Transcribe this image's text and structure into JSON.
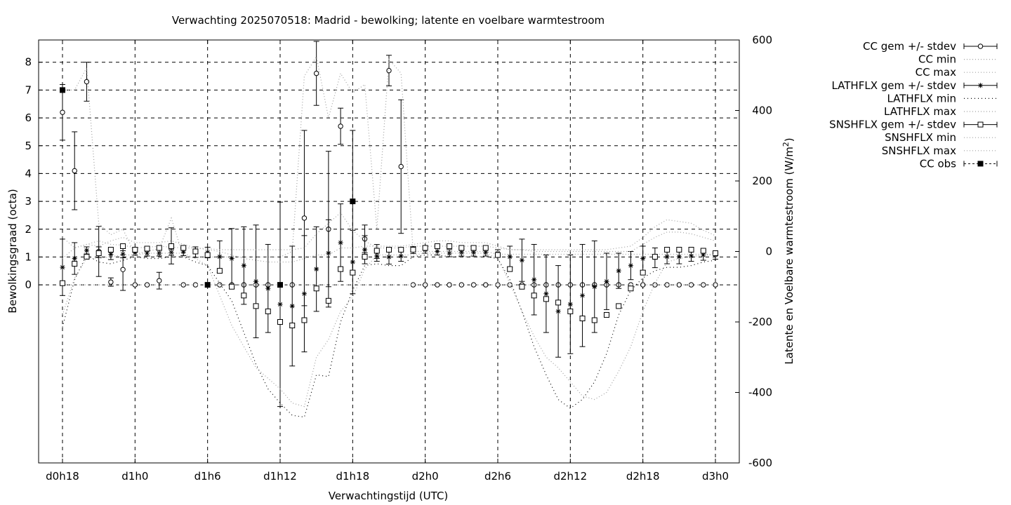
{
  "chart_data": {
    "type": "line",
    "title": "Verwachting 2025070518: Madrid - bewolking; latente en voelbare warmtestroom",
    "xlabel": "Verwachtingstijd (UTC)",
    "ylabel": "Bewolkingsgraad (octa)",
    "y2label_main": "Latente en Voelbare warmtestroom (W/m",
    "y2label_sup": "2",
    "y2label_end": ")",
    "xlim": [
      0,
      54
    ],
    "ylim": [
      -6.4,
      8.8
    ],
    "y2lim": [
      -600,
      600
    ],
    "grid": true,
    "legend_position": "right-outside",
    "x_ticks": [
      {
        "x": 0,
        "label": "d0h18"
      },
      {
        "x": 6,
        "label": "d1h0"
      },
      {
        "x": 12,
        "label": "d1h6"
      },
      {
        "x": 18,
        "label": "d1h12"
      },
      {
        "x": 24,
        "label": "d1h18"
      },
      {
        "x": 30,
        "label": "d2h0"
      },
      {
        "x": 36,
        "label": "d2h6"
      },
      {
        "x": 42,
        "label": "d2h12"
      },
      {
        "x": 48,
        "label": "d2h18"
      },
      {
        "x": 54,
        "label": "d3h0"
      }
    ],
    "y_ticks": [
      {
        "v": 0,
        "label": "0"
      },
      {
        "v": 1,
        "label": "1"
      },
      {
        "v": 2,
        "label": "2"
      },
      {
        "v": 3,
        "label": "3"
      },
      {
        "v": 4,
        "label": "4"
      },
      {
        "v": 5,
        "label": "5"
      },
      {
        "v": 6,
        "label": "6"
      },
      {
        "v": 7,
        "label": "7"
      },
      {
        "v": 8,
        "label": "8"
      }
    ],
    "y2_ticks": [
      {
        "v": -600,
        "label": "-600"
      },
      {
        "v": -400,
        "label": "-400"
      },
      {
        "v": -200,
        "label": "-200"
      },
      {
        "v": 0,
        "label": "0"
      },
      {
        "v": 200,
        "label": "200"
      },
      {
        "v": 400,
        "label": "400"
      },
      {
        "v": 600,
        "label": "600"
      }
    ],
    "x": [
      0,
      1,
      2,
      3,
      4,
      5,
      6,
      7,
      8,
      9,
      10,
      11,
      12,
      13,
      14,
      15,
      16,
      17,
      18,
      19,
      20,
      21,
      22,
      23,
      24,
      25,
      26,
      27,
      28,
      29,
      30,
      31,
      32,
      33,
      34,
      35,
      36,
      37,
      38,
      39,
      40,
      41,
      42,
      43,
      44,
      45,
      46,
      47,
      48,
      49,
      50,
      51,
      52,
      53,
      54
    ],
    "series": [
      {
        "name": "CC gem +/- stdev",
        "axis": "y1",
        "marker": "circle",
        "values": [
          6.2,
          4.1,
          7.3,
          1.2,
          0.1,
          0.55,
          0,
          0,
          0.15,
          1.4,
          0,
          0,
          0,
          0,
          0,
          0,
          0,
          0,
          0,
          0,
          2.4,
          7.6,
          2.0,
          5.7,
          3.0,
          1.65,
          1.2,
          7.7,
          4.25,
          0,
          0,
          0,
          0,
          0,
          0,
          0,
          0,
          0,
          0,
          0,
          0,
          0,
          0,
          0,
          0,
          0,
          0,
          0,
          0,
          0,
          0,
          0,
          0,
          0,
          0
        ],
        "stdev": [
          1.0,
          1.4,
          0.7,
          0.9,
          0.15,
          0.75,
          0,
          0,
          0.3,
          0.65,
          0,
          0,
          0,
          0,
          0,
          0,
          0,
          0,
          0,
          0,
          3.15,
          1.15,
          2.8,
          0.65,
          2.55,
          0.5,
          0.25,
          0.55,
          2.4,
          0,
          0,
          0,
          0,
          0,
          0,
          0,
          0,
          0,
          0,
          0,
          0,
          0,
          0,
          0,
          0,
          0,
          0,
          0,
          0,
          0,
          0,
          0,
          0,
          0,
          0
        ]
      },
      {
        "name": "CC min",
        "axis": "y1",
        "style": "dotted",
        "values": [
          0,
          0,
          0,
          0,
          0,
          0,
          0,
          0,
          0,
          0,
          0,
          0,
          0,
          0,
          0,
          0,
          0,
          0,
          0,
          0,
          0,
          0,
          0,
          0,
          0,
          0,
          0,
          0,
          0,
          0,
          0,
          0,
          0,
          0,
          0,
          0,
          0,
          0,
          0,
          0,
          0,
          0,
          0,
          0,
          0,
          0,
          0,
          0,
          0,
          0,
          0,
          0,
          0,
          0,
          0
        ]
      },
      {
        "name": "CC max",
        "axis": "y1",
        "style": "dotted",
        "values": [
          7.0,
          7.0,
          7.8,
          2.2,
          1.8,
          2.0,
          1.1,
          1.2,
          1.3,
          2.4,
          1.0,
          1.0,
          1.0,
          1.0,
          1.0,
          1.0,
          1.0,
          1.0,
          1.0,
          1.2,
          7.5,
          8.2,
          6.0,
          7.6,
          6.9,
          7.2,
          2.0,
          8.1,
          7.6,
          1.2,
          1.2,
          1.2,
          1.2,
          1.2,
          1.2,
          1.2,
          1.1,
          1.1,
          1.1,
          1.1,
          1.1,
          1.1,
          1.1,
          1.1,
          1.1,
          1.1,
          1.1,
          1.1,
          1.1,
          1.1,
          1.1,
          1.1,
          1.1,
          1.1,
          1.1
        ]
      },
      {
        "name": "LATHFLX gem +/- stdev",
        "axis": "y2",
        "marker": "star",
        "values": [
          -45,
          -20,
          3,
          -2,
          -8,
          -8,
          -3,
          -5,
          -5,
          -3,
          -2,
          -2,
          -3,
          -15,
          -20,
          -40,
          -85,
          -105,
          -150,
          -155,
          -120,
          -50,
          -5,
          25,
          -30,
          5,
          -13,
          -16,
          -13,
          4,
          5,
          0,
          -5,
          -3,
          -3,
          -3,
          -5,
          -15,
          -25,
          -80,
          -120,
          -170,
          -150,
          -125,
          -100,
          -85,
          -55,
          -40,
          -20,
          -18,
          -15,
          -15,
          -13,
          -10,
          -10
        ],
        "stdev": [
          80,
          45,
          10,
          15,
          15,
          10,
          8,
          8,
          8,
          8,
          10,
          15,
          15,
          45,
          85,
          110,
          160,
          125,
          290,
          170,
          165,
          120,
          95,
          110,
          90,
          40,
          15,
          20,
          15,
          10,
          10,
          10,
          10,
          10,
          10,
          10,
          10,
          30,
          60,
          100,
          110,
          130,
          140,
          145,
          130,
          80,
          50,
          40,
          35,
          28,
          20,
          20,
          15,
          15,
          12
        ]
      },
      {
        "name": "LATHFLX min",
        "axis": "y2",
        "style": "dotted",
        "values": [
          -215,
          -80,
          -10,
          -30,
          -35,
          -25,
          -15,
          -20,
          -20,
          -15,
          -15,
          -30,
          -40,
          -90,
          -140,
          -230,
          -320,
          -390,
          -430,
          -465,
          -470,
          -350,
          -355,
          -200,
          -110,
          -40,
          -35,
          -40,
          -40,
          -15,
          -10,
          -10,
          -15,
          -15,
          -15,
          -15,
          -20,
          -80,
          -170,
          -270,
          -350,
          -420,
          -445,
          -420,
          -370,
          -290,
          -180,
          -110,
          -75,
          -55,
          -45,
          -45,
          -40,
          -30,
          -25
        ]
      },
      {
        "name": "LATHFLX max",
        "axis": "y2",
        "style": "dotted",
        "values": [
          40,
          10,
          20,
          30,
          20,
          18,
          10,
          12,
          15,
          12,
          10,
          10,
          8,
          5,
          5,
          5,
          5,
          5,
          5,
          5,
          10,
          50,
          80,
          110,
          60,
          30,
          10,
          10,
          10,
          15,
          15,
          15,
          15,
          15,
          15,
          15,
          10,
          5,
          5,
          5,
          5,
          5,
          5,
          5,
          5,
          5,
          10,
          15,
          40,
          70,
          90,
          85,
          80,
          60,
          45
        ]
      },
      {
        "name": "SNSHFLX gem +/- stdev",
        "axis": "y2",
        "marker": "square",
        "values": [
          -90,
          -35,
          -15,
          -5,
          5,
          15,
          5,
          8,
          10,
          15,
          10,
          0,
          -10,
          -55,
          -100,
          -125,
          -155,
          -170,
          -200,
          -210,
          -195,
          -105,
          -140,
          -50,
          -60,
          -15,
          2,
          5,
          5,
          5,
          10,
          15,
          15,
          10,
          10,
          10,
          -10,
          -50,
          -100,
          -125,
          -135,
          -145,
          -170,
          -190,
          -195,
          -180,
          -155,
          -105,
          -60,
          -15,
          5,
          5,
          5,
          2,
          -5
        ]
      },
      {
        "name": "SNSHFLX min",
        "axis": "y2",
        "style": "dotted",
        "values": [
          -180,
          -75,
          -20,
          -20,
          -15,
          -10,
          -10,
          -5,
          -5,
          -5,
          -5,
          -20,
          -40,
          -125,
          -210,
          -270,
          -330,
          -360,
          -390,
          -430,
          -440,
          -300,
          -250,
          -170,
          -130,
          -50,
          -10,
          -10,
          -10,
          -10,
          -5,
          -5,
          -5,
          -5,
          -5,
          -5,
          -20,
          -90,
          -170,
          -240,
          -300,
          -330,
          -370,
          -410,
          -420,
          -400,
          -340,
          -270,
          -170,
          -90,
          -30,
          -20,
          -15,
          -10,
          -10
        ]
      },
      {
        "name": "SNSHFLX max",
        "axis": "y2",
        "style": "dotted",
        "values": [
          -20,
          10,
          20,
          15,
          30,
          40,
          25,
          25,
          25,
          30,
          20,
          10,
          5,
          0,
          -10,
          -20,
          -25,
          -30,
          -30,
          -30,
          -20,
          -10,
          -10,
          10,
          10,
          15,
          15,
          15,
          15,
          20,
          25,
          30,
          30,
          25,
          25,
          25,
          15,
          5,
          5,
          0,
          0,
          0,
          0,
          0,
          0,
          0,
          0,
          0,
          20,
          40,
          55,
          55,
          50,
          40,
          30
        ]
      },
      {
        "name": "CC obs",
        "axis": "y1",
        "marker": "filled-square",
        "x": [
          0,
          12,
          18,
          24
        ],
        "values": [
          7.0,
          0,
          0,
          3.0
        ]
      }
    ]
  }
}
